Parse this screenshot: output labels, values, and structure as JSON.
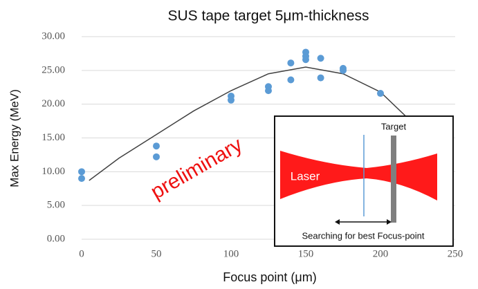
{
  "chart_data": {
    "type": "scatter",
    "title": "SUS tape target 5μm-thickness",
    "x_label": "Focus point (μm)",
    "y_label": "Max Energy (MeV)",
    "xlim": [
      0,
      250
    ],
    "xticks": [
      0,
      50,
      100,
      150,
      200,
      250
    ],
    "ylim": [
      0,
      30
    ],
    "yticks": [
      {
        "value": 0,
        "label": "0.00"
      },
      {
        "value": 5,
        "label": "5.00"
      },
      {
        "value": 10,
        "label": "10.00"
      },
      {
        "value": 15,
        "label": "15.00"
      },
      {
        "value": 20,
        "label": "20.00"
      },
      {
        "value": 25,
        "label": "25.00"
      },
      {
        "value": 30,
        "label": "30.00"
      }
    ],
    "grid": true,
    "series": [
      {
        "type": "scatter",
        "color": "#5b9bd5",
        "x": [
          0,
          0,
          50,
          50,
          100,
          100,
          125,
          125,
          140,
          140,
          150,
          150,
          150,
          160,
          160,
          175,
          175,
          200
        ],
        "values": [
          10.0,
          9.0,
          13.8,
          12.2,
          21.2,
          20.6,
          22.6,
          22.0,
          26.1,
          23.6,
          27.7,
          27.1,
          26.6,
          26.8,
          23.9,
          25.3,
          25.0,
          21.6
        ]
      },
      {
        "type": "line",
        "color": "#404040",
        "x": [
          5,
          25,
          50,
          75,
          100,
          125,
          150,
          175,
          200,
          225
        ],
        "values": [
          8.7,
          12.0,
          15.5,
          19.0,
          22.0,
          24.5,
          25.5,
          24.5,
          21.8,
          16.5
        ]
      }
    ],
    "annotations": [
      "preliminary"
    ],
    "inset": {
      "target": "Target",
      "laser": "Laser",
      "caption": "Searching for best Focus-point"
    }
  }
}
